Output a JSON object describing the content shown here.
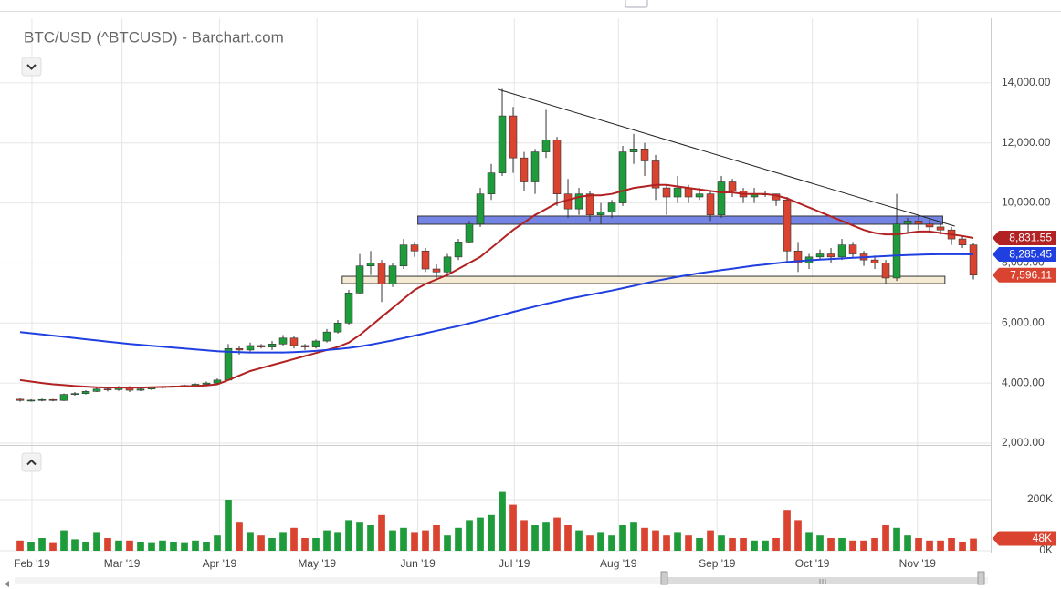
{
  "chart_data": {
    "type": "candlestick",
    "title": "BTC/USD (^BTCUSD) - Barchart.com",
    "grid": true,
    "xlim": [
      -0.5,
      88.58
    ],
    "xticks": [
      {
        "value": 1.08,
        "label": "Feb '19"
      },
      {
        "value": 9.3,
        "label": "Mar '19"
      },
      {
        "value": 18.2,
        "label": "Apr '19"
      },
      {
        "value": 27.1,
        "label": "May '19"
      },
      {
        "value": 36.3,
        "label": "Jun '19"
      },
      {
        "value": 45.1,
        "label": "Jul '19"
      },
      {
        "value": 54.6,
        "label": "Aug '19"
      },
      {
        "value": 63.6,
        "label": "Sep '19"
      },
      {
        "value": 72.3,
        "label": "Oct '19"
      },
      {
        "value": 81.9,
        "label": "Nov '19"
      }
    ],
    "ylim": [
      2000,
      16000
    ],
    "yticks": [
      {
        "value": 2000,
        "label": "2,000.00"
      },
      {
        "value": 4000,
        "label": "4,000.00"
      },
      {
        "value": 6000,
        "label": "6,000.00"
      },
      {
        "value": 8000,
        "label": "8,000.00"
      },
      {
        "value": 10000,
        "label": "10,000.00"
      },
      {
        "value": 12000,
        "label": "12,000.00"
      },
      {
        "value": 14000,
        "label": "14,000.00"
      }
    ],
    "candles": {
      "up_color": "#1e9b3a",
      "down_color": "#d9432f",
      "last_value_label": "7,596.11",
      "open": [
        3460,
        3420,
        3430,
        3450,
        3420,
        3620,
        3650,
        3720,
        3800,
        3780,
        3850,
        3760,
        3800,
        3850,
        3880,
        3900,
        3920,
        3960,
        4000,
        4100,
        5150,
        5100,
        5250,
        5200,
        5300,
        5500,
        5250,
        5200,
        5400,
        5700,
        6000,
        7000,
        7900,
        8000,
        7300,
        7900,
        8600,
        8400,
        7800,
        7700,
        8200,
        8700,
        9300,
        10300,
        11000,
        12900,
        11500,
        10700,
        11700,
        12100,
        10300,
        9800,
        10300,
        9600,
        9700,
        10000,
        11700,
        11800,
        11400,
        10500,
        10200,
        10500,
        10200,
        10300,
        9600,
        10700,
        10400,
        10200,
        10300,
        10300,
        10100,
        8400,
        8000,
        8200,
        8300,
        8200,
        8600,
        8300,
        8100,
        8000,
        7500,
        9300,
        9400,
        9300,
        9200,
        9100,
        8800,
        8600
      ],
      "high": [
        3500,
        3460,
        3480,
        3470,
        3650,
        3700,
        3760,
        3850,
        3850,
        3900,
        3900,
        3830,
        3880,
        3900,
        3920,
        3950,
        3990,
        4050,
        4150,
        5300,
        5250,
        5350,
        5300,
        5400,
        5600,
        5550,
        5300,
        5450,
        5800,
        6100,
        7100,
        8300,
        8400,
        8100,
        8000,
        8800,
        8700,
        8500,
        7950,
        8300,
        8800,
        9400,
        10500,
        11300,
        13800,
        13200,
        11700,
        11800,
        13100,
        12200,
        10800,
        10500,
        10400,
        10000,
        10100,
        11900,
        12300,
        12000,
        11600,
        10600,
        10900,
        10600,
        10500,
        10400,
        10900,
        10800,
        10500,
        10500,
        10400,
        10300,
        10200,
        8700,
        8300,
        8450,
        8500,
        8800,
        8700,
        8400,
        8250,
        8100,
        10300,
        9500,
        9600,
        9450,
        9400,
        9200,
        8900,
        8650
      ],
      "low": [
        3380,
        3380,
        3390,
        3390,
        3400,
        3580,
        3620,
        3700,
        3720,
        3740,
        3700,
        3730,
        3760,
        3820,
        3850,
        3870,
        3890,
        3930,
        3980,
        4080,
        4950,
        5050,
        5150,
        5100,
        5250,
        5150,
        5100,
        5150,
        5350,
        5650,
        5950,
        6950,
        7600,
        6700,
        7200,
        7800,
        8200,
        7700,
        7500,
        7600,
        8100,
        8650,
        9200,
        10100,
        10900,
        11000,
        10400,
        10300,
        11500,
        9900,
        9500,
        9600,
        9400,
        9300,
        9500,
        9900,
        11300,
        10900,
        10100,
        9600,
        10000,
        10000,
        10100,
        9400,
        9500,
        10200,
        10000,
        10000,
        10200,
        9900,
        8000,
        7700,
        7800,
        8100,
        8000,
        8100,
        8200,
        7900,
        7800,
        7300,
        7400,
        9000,
        9100,
        9000,
        8950,
        8600,
        8500,
        7450
      ],
      "close": [
        3420,
        3430,
        3450,
        3420,
        3620,
        3650,
        3720,
        3800,
        3780,
        3850,
        3760,
        3800,
        3850,
        3880,
        3900,
        3920,
        3960,
        4000,
        4100,
        5150,
        5100,
        5250,
        5200,
        5300,
        5500,
        5250,
        5200,
        5400,
        5700,
        6000,
        7000,
        7900,
        8000,
        7300,
        7900,
        8600,
        8400,
        7800,
        7700,
        8200,
        8700,
        9300,
        10300,
        11000,
        12900,
        11500,
        10700,
        11700,
        12100,
        10300,
        9800,
        10300,
        9600,
        9700,
        10000,
        11700,
        11800,
        11400,
        10500,
        10200,
        10500,
        10200,
        10300,
        9600,
        10700,
        10400,
        10200,
        10300,
        10300,
        10100,
        8400,
        8000,
        8200,
        8300,
        8200,
        8600,
        8300,
        8100,
        8000,
        7500,
        9300,
        9400,
        9300,
        9200,
        9100,
        8800,
        8600,
        7596.11
      ]
    },
    "moving_averages": [
      {
        "color": "#b22222",
        "last_value_label": "8,831.55",
        "values": [
          4100,
          4050,
          4000,
          3960,
          3930,
          3900,
          3880,
          3860,
          3850,
          3850,
          3850,
          3850,
          3860,
          3870,
          3880,
          3890,
          3900,
          3920,
          3960,
          4100,
          4250,
          4400,
          4500,
          4600,
          4700,
          4800,
          4900,
          5000,
          5100,
          5200,
          5350,
          5600,
          5900,
          6200,
          6500,
          6800,
          7100,
          7300,
          7450,
          7600,
          7800,
          8000,
          8200,
          8500,
          8800,
          9100,
          9350,
          9600,
          9800,
          10000,
          10100,
          10200,
          10250,
          10250,
          10300,
          10400,
          10500,
          10550,
          10600,
          10600,
          10550,
          10500,
          10450,
          10400,
          10350,
          10350,
          10300,
          10300,
          10300,
          10250,
          10150,
          10000,
          9850,
          9700,
          9550,
          9400,
          9250,
          9100,
          9000,
          8950,
          8950,
          9000,
          9050,
          9050,
          9000,
          8950,
          8900,
          8831.55
        ]
      },
      {
        "color": "#1f3fe0",
        "last_value_label": "8,285.45",
        "values": [
          5700,
          5660,
          5620,
          5580,
          5540,
          5500,
          5460,
          5420,
          5380,
          5340,
          5300,
          5270,
          5240,
          5210,
          5180,
          5150,
          5120,
          5090,
          5060,
          5040,
          5030,
          5020,
          5020,
          5020,
          5020,
          5030,
          5050,
          5070,
          5100,
          5130,
          5170,
          5220,
          5280,
          5350,
          5420,
          5500,
          5580,
          5660,
          5740,
          5820,
          5900,
          5990,
          6080,
          6170,
          6270,
          6370,
          6460,
          6550,
          6640,
          6720,
          6800,
          6870,
          6940,
          7010,
          7080,
          7160,
          7240,
          7320,
          7400,
          7470,
          7540,
          7600,
          7660,
          7710,
          7760,
          7810,
          7860,
          7910,
          7950,
          7990,
          8030,
          8060,
          8090,
          8110,
          8130,
          8150,
          8170,
          8190,
          8210,
          8230,
          8250,
          8265,
          8275,
          8285,
          8290,
          8295,
          8290,
          8285.45
        ]
      }
    ],
    "zones": [
      {
        "from": 36.3,
        "to": 84.2,
        "low": 9289,
        "high": 9562,
        "color": "#5b6fe0"
      },
      {
        "from": 29.4,
        "to": 84.4,
        "low": 7313,
        "high": 7556,
        "color": "#f3e6cc"
      }
    ],
    "trendline": {
      "x": [
        43.6,
        85.3
      ],
      "y": [
        13787,
        9228
      ],
      "color": "#222"
    },
    "volume": {
      "ylim": [
        0,
        400000
      ],
      "yticks": [
        {
          "value": 0,
          "label": "0K"
        },
        {
          "value": 200000,
          "label": "200K"
        }
      ],
      "last_value_label": "48K",
      "values": [
        40000,
        35000,
        50000,
        30000,
        80000,
        45000,
        35000,
        70000,
        50000,
        40000,
        40000,
        35000,
        30000,
        40000,
        35000,
        30000,
        40000,
        35000,
        60000,
        200000,
        110000,
        70000,
        60000,
        50000,
        70000,
        90000,
        50000,
        50000,
        80000,
        70000,
        120000,
        110000,
        100000,
        140000,
        80000,
        90000,
        70000,
        80000,
        100000,
        60000,
        90000,
        120000,
        130000,
        140000,
        230000,
        180000,
        120000,
        100000,
        110000,
        130000,
        100000,
        80000,
        60000,
        70000,
        60000,
        100000,
        110000,
        90000,
        80000,
        60000,
        70000,
        60000,
        50000,
        80000,
        60000,
        50000,
        50000,
        40000,
        40000,
        50000,
        160000,
        120000,
        70000,
        60000,
        50000,
        50000,
        40000,
        40000,
        50000,
        100000,
        90000,
        60000,
        50000,
        40000,
        40000,
        50000,
        35000,
        48000
      ]
    }
  }
}
